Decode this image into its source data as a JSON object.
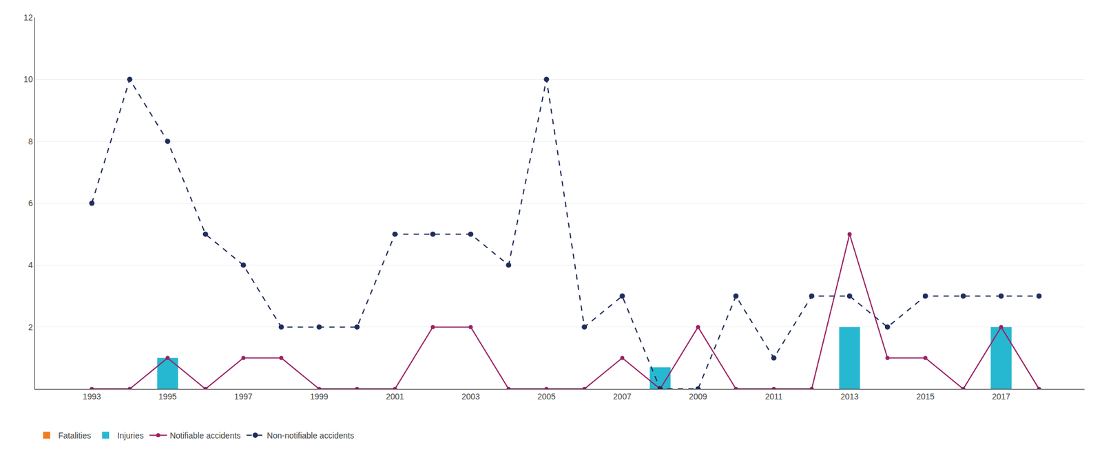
{
  "chart_data": {
    "type": "bar",
    "x": [
      1993,
      1994,
      1995,
      1996,
      1997,
      1998,
      1999,
      2000,
      2001,
      2002,
      2003,
      2004,
      2005,
      2006,
      2007,
      2008,
      2009,
      2010,
      2011,
      2012,
      2013,
      2014,
      2015,
      2016,
      2017,
      2018
    ],
    "series": [
      {
        "name": "Fatalities",
        "type": "bar",
        "color": "#f47b20",
        "values": [
          0,
          0,
          0,
          0,
          0,
          0,
          0,
          0,
          0,
          0,
          0,
          0,
          0,
          0,
          0,
          0,
          0,
          0,
          0,
          0,
          0,
          0,
          0,
          0,
          0,
          0
        ]
      },
      {
        "name": "Injuries",
        "type": "bar",
        "color": "#26b8d1",
        "values": [
          0,
          0,
          1,
          0,
          0,
          0,
          0,
          0,
          0,
          0,
          0,
          0,
          0,
          0,
          0,
          0.7,
          0,
          0,
          0,
          0,
          2,
          0,
          0,
          0,
          2,
          0
        ]
      },
      {
        "name": "Notifiable accidents",
        "type": "line",
        "color": "#9b2063",
        "marker": "circle",
        "line_style": "solid",
        "values": [
          0,
          0,
          1,
          0,
          1,
          1,
          0,
          0,
          0,
          2,
          2,
          0,
          0,
          0,
          1,
          0,
          2,
          0,
          0,
          0,
          5,
          1,
          1,
          0,
          2,
          0
        ]
      },
      {
        "name": "Non-notifiable accidents",
        "type": "line",
        "color": "#1e2d5a",
        "marker": "circle",
        "line_style": "dashed",
        "values": [
          6,
          10,
          8,
          5,
          4,
          2,
          2,
          2,
          5,
          5,
          5,
          4,
          10,
          2,
          3,
          0,
          0,
          3,
          1,
          3,
          3,
          2,
          3,
          3,
          3,
          3
        ]
      }
    ],
    "xlim": [
      1991.5,
      2019.2
    ],
    "xticks": [
      1993,
      1995,
      1997,
      1999,
      2001,
      2003,
      2005,
      2007,
      2009,
      2011,
      2013,
      2015,
      2017
    ],
    "ylim": [
      0,
      12
    ],
    "yticks": [
      2,
      4,
      6,
      8,
      10,
      12
    ],
    "grid": "y",
    "legend": "bottom"
  }
}
